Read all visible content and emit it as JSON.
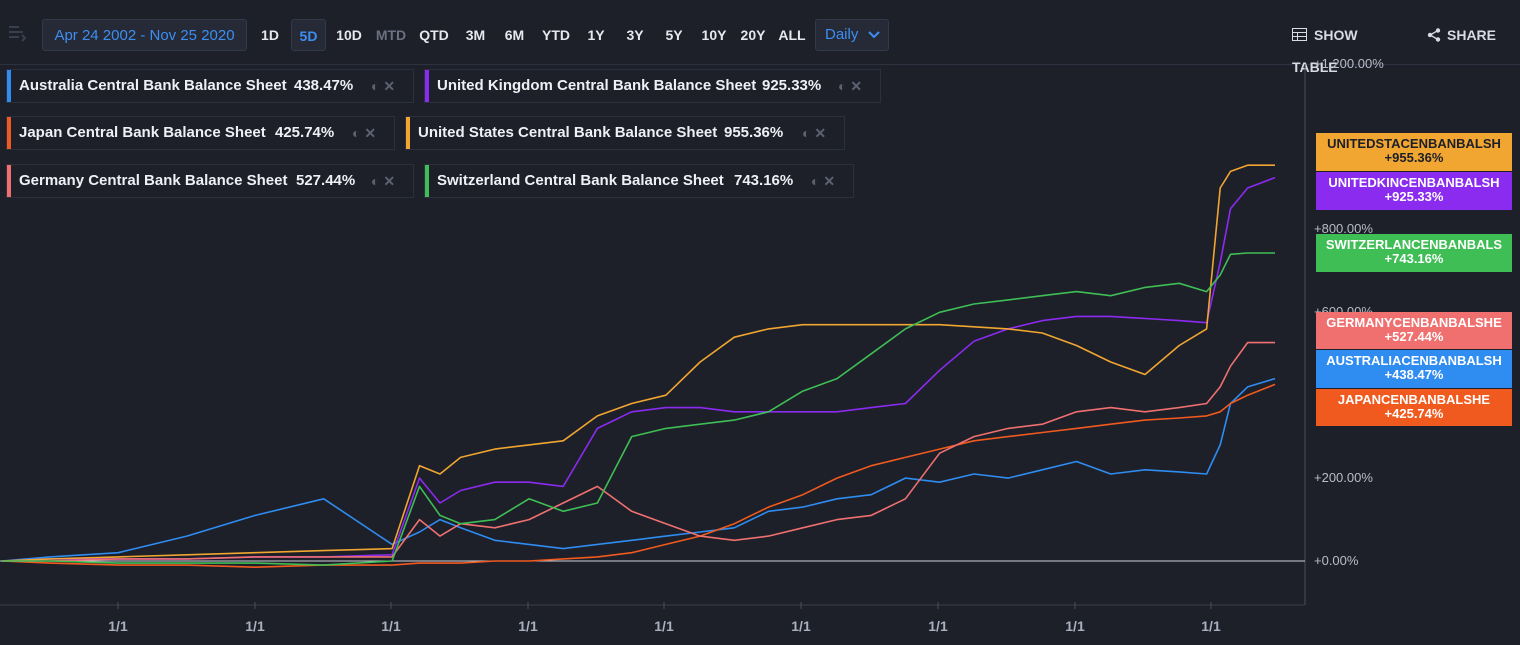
{
  "toolbar": {
    "date_range": "Apr 24 2002 - Nov 25 2020",
    "timeframes": [
      "1D",
      "5D",
      "10D",
      "MTD",
      "QTD",
      "3M",
      "6M",
      "YTD",
      "1Y",
      "3Y",
      "5Y",
      "10Y",
      "20Y",
      "ALL"
    ],
    "active_timeframe": "5D",
    "disabled_timeframe": "MTD",
    "frequency": "Daily",
    "show_table": "SHOW TABLE",
    "share": "SHARE"
  },
  "legend": [
    {
      "name": "Australia Central Bank Balance Sheet",
      "value": "438.47%",
      "color": "#2f8cf0"
    },
    {
      "name": "United Kingdom Central Bank Balance Sheet",
      "value": "925.33%",
      "color": "#8b2bf0"
    },
    {
      "name": "Japan Central Bank Balance Sheet",
      "value": "425.74%",
      "color": "#f05a1e"
    },
    {
      "name": "United States Central Bank Balance Sheet",
      "value": "955.36%",
      "color": "#f0a630"
    },
    {
      "name": "Germany Central Bank Balance Sheet",
      "value": "527.44%",
      "color": "#f07070"
    },
    {
      "name": "Switzerland Central Bank Balance Sheet",
      "value": "743.16%",
      "color": "#3fbe55"
    }
  ],
  "tags": [
    {
      "ticker": "UNITEDSTACENBANBALSH",
      "value": "+955.36%",
      "color": "#f0a630",
      "text_color": "#1d1f29"
    },
    {
      "ticker": "UNITEDKINCENBANBALSH",
      "value": "+925.33%",
      "color": "#8b2bf0",
      "text_color": "#ffffff"
    },
    {
      "ticker": "SWITZERLANCENBANBALS",
      "value": "+743.16%",
      "color": "#3fbe55",
      "text_color": "#ffffff"
    },
    {
      "ticker": "GERMANYCENBANBALSHE",
      "value": "+527.44%",
      "color": "#f07070",
      "text_color": "#ffffff"
    },
    {
      "ticker": "AUSTRALIACENBANBALSH",
      "value": "+438.47%",
      "color": "#2f8cf0",
      "text_color": "#ffffff"
    },
    {
      "ticker": "JAPANCENBANBALSHE",
      "value": "+425.74%",
      "color": "#f05a1e",
      "text_color": "#ffffff"
    }
  ],
  "chart_data": {
    "type": "line",
    "y_unit": "%",
    "ylim": [
      -100,
      1200
    ],
    "y_ticks": [
      "+1,200.00%",
      "+800.00%",
      "+600.00%",
      "+200.00%",
      "+0.00%"
    ],
    "x_ticks": [
      "1/1",
      "1/1",
      "1/1",
      "1/1",
      "1/1",
      "1/1",
      "1/1",
      "1/1",
      "1/1"
    ],
    "grid": false,
    "x": [
      2002.3,
      2003.0,
      2004.0,
      2005.0,
      2006.0,
      2007.0,
      2008.0,
      2008.4,
      2008.7,
      2009.0,
      2009.5,
      2010.0,
      2010.5,
      2011.0,
      2011.5,
      2012.0,
      2012.5,
      2013.0,
      2013.5,
      2014.0,
      2014.5,
      2015.0,
      2015.5,
      2016.0,
      2016.5,
      2017.0,
      2017.5,
      2018.0,
      2018.5,
      2019.0,
      2019.5,
      2019.9,
      2020.1,
      2020.25,
      2020.5,
      2020.9
    ],
    "series": [
      {
        "name": "Australia Central Bank Balance Sheet",
        "color": "#2f8cf0",
        "values": [
          0,
          10,
          20,
          60,
          110,
          150,
          40,
          70,
          100,
          80,
          50,
          40,
          30,
          40,
          50,
          60,
          70,
          80,
          120,
          130,
          150,
          160,
          200,
          190,
          210,
          200,
          220,
          240,
          210,
          220,
          215,
          210,
          280,
          380,
          420,
          440
        ]
      },
      {
        "name": "United Kingdom Central Bank Balance Sheet",
        "color": "#8b2bf0",
        "values": [
          0,
          5,
          5,
          5,
          10,
          10,
          15,
          200,
          140,
          170,
          190,
          190,
          180,
          320,
          360,
          370,
          370,
          360,
          360,
          360,
          360,
          370,
          380,
          460,
          530,
          560,
          580,
          590,
          590,
          585,
          580,
          575,
          720,
          850,
          900,
          925
        ]
      },
      {
        "name": "Japan Central Bank Balance Sheet",
        "color": "#f05a1e",
        "values": [
          0,
          -5,
          -10,
          -10,
          -15,
          -10,
          -10,
          -5,
          -5,
          -5,
          0,
          0,
          5,
          10,
          20,
          40,
          60,
          90,
          130,
          160,
          200,
          230,
          250,
          270,
          290,
          300,
          310,
          320,
          330,
          340,
          345,
          350,
          360,
          380,
          400,
          426
        ]
      },
      {
        "name": "United States Central Bank Balance Sheet",
        "color": "#f0a630",
        "values": [
          0,
          5,
          10,
          15,
          20,
          25,
          30,
          230,
          210,
          250,
          270,
          280,
          290,
          350,
          380,
          400,
          480,
          540,
          560,
          570,
          570,
          570,
          570,
          570,
          565,
          560,
          550,
          520,
          480,
          450,
          520,
          560,
          900,
          940,
          955,
          955
        ]
      },
      {
        "name": "Germany Central Bank Balance Sheet",
        "color": "#f07070",
        "values": [
          0,
          0,
          5,
          5,
          10,
          10,
          10,
          100,
          60,
          90,
          80,
          100,
          140,
          180,
          120,
          90,
          60,
          50,
          60,
          80,
          100,
          110,
          150,
          260,
          300,
          320,
          330,
          360,
          370,
          360,
          370,
          380,
          420,
          470,
          527,
          527
        ]
      },
      {
        "name": "Switzerland Central Bank Balance Sheet",
        "color": "#3fbe55",
        "values": [
          0,
          0,
          -5,
          -5,
          -5,
          -10,
          0,
          180,
          110,
          90,
          100,
          150,
          120,
          140,
          300,
          320,
          330,
          340,
          360,
          410,
          440,
          500,
          560,
          600,
          620,
          630,
          640,
          650,
          640,
          660,
          670,
          650,
          690,
          740,
          743,
          743
        ]
      }
    ]
  }
}
